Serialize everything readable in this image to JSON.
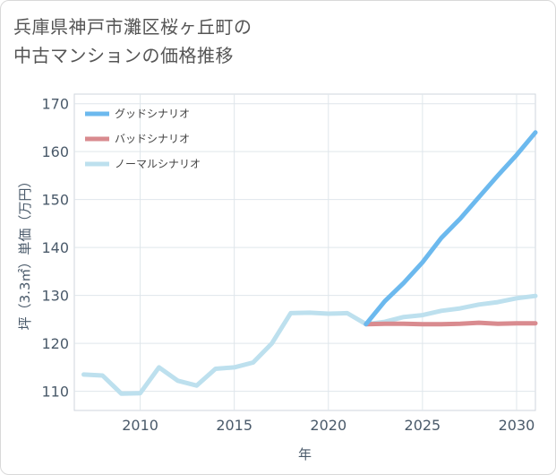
{
  "title": {
    "line1": "兵庫県神戸市灘区桜ヶ丘町の",
    "line2": "中古マンションの価格推移"
  },
  "chart_data": {
    "type": "line",
    "title": "兵庫県神戸市灘区桜ヶ丘町の中古マンションの価格推移",
    "xlabel": "年",
    "ylabel": "坪（3.3㎡）単価（万円）",
    "xlim": [
      2006.5,
      2031
    ],
    "ylim": [
      106,
      172
    ],
    "xticks": [
      2010,
      2015,
      2020,
      2025,
      2030
    ],
    "yticks": [
      110,
      120,
      130,
      140,
      150,
      160,
      170
    ],
    "legend_position": "top-left",
    "series": [
      {
        "name": "ノーマルシナリオ",
        "color": "#bde0ee",
        "x": [
          2007,
          2008,
          2009,
          2010,
          2011,
          2012,
          2013,
          2014,
          2015,
          2016,
          2017,
          2018,
          2019,
          2020,
          2021,
          2022,
          2023,
          2024,
          2025,
          2026,
          2027,
          2028,
          2029,
          2030,
          2031
        ],
        "values": [
          113.5,
          113.3,
          109.5,
          109.6,
          115.0,
          112.2,
          111.2,
          114.7,
          115.0,
          116.0,
          120.0,
          126.3,
          126.4,
          126.2,
          126.3,
          124.0,
          124.5,
          125.5,
          125.9,
          126.8,
          127.3,
          128.1,
          128.6,
          129.4,
          129.9
        ]
      },
      {
        "name": "バッドシナリオ",
        "color": "#d98b8f",
        "x": [
          2022,
          2023,
          2024,
          2025,
          2026,
          2027,
          2028,
          2029,
          2030,
          2031
        ],
        "values": [
          124.0,
          124.1,
          124.1,
          124.0,
          124.0,
          124.1,
          124.3,
          124.1,
          124.2,
          124.2
        ]
      },
      {
        "name": "グッドシナリオ",
        "color": "#6cb9ee",
        "x": [
          2022,
          2023,
          2024,
          2025,
          2026,
          2027,
          2028,
          2029,
          2030,
          2031
        ],
        "values": [
          124.0,
          128.8,
          132.6,
          136.9,
          142.0,
          146.0,
          150.5,
          155.0,
          159.3,
          164.0
        ]
      }
    ],
    "legend": [
      "グッドシナリオ",
      "バッドシナリオ",
      "ノーマルシナリオ"
    ]
  }
}
